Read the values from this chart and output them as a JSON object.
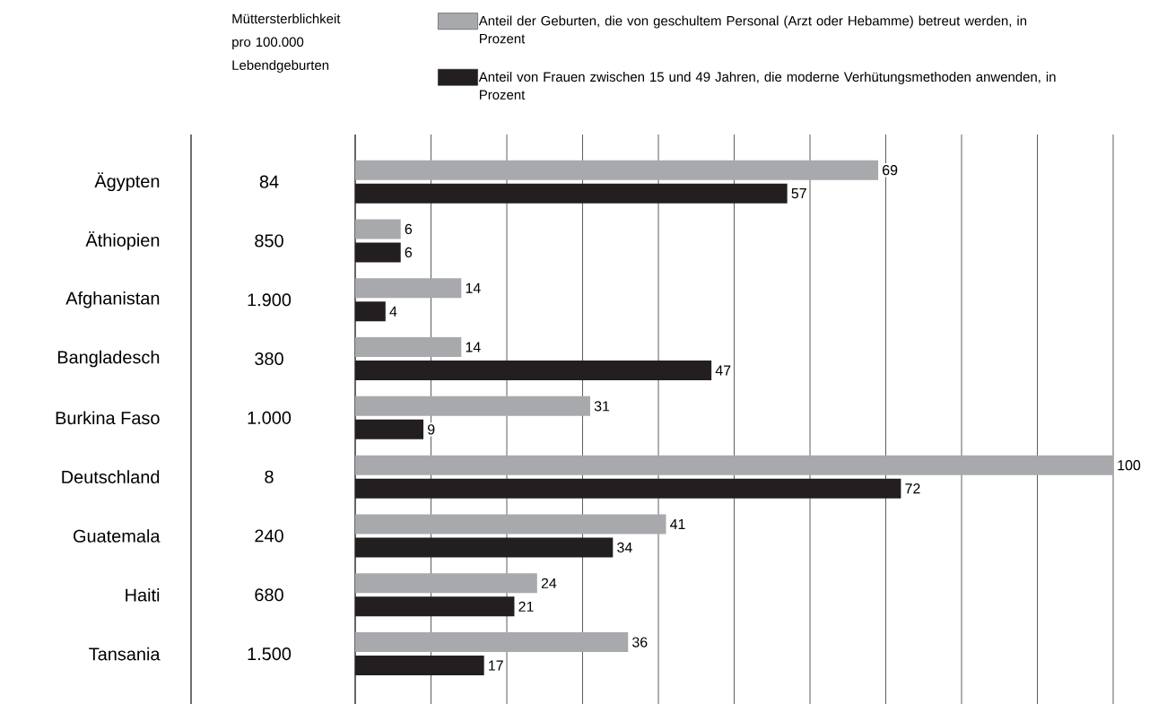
{
  "chart_data": {
    "type": "bar",
    "orientation": "horizontal",
    "categories": [
      "Ägypten",
      "Äthiopien",
      "Afghanistan",
      "Bangladesch",
      "Burkina Faso",
      "Deutschland",
      "Guatemala",
      "Haiti",
      "Tansania"
    ],
    "series": [
      {
        "name": "Anteil der Geburten, die von geschultem Personal (Arzt oder Hebamme) betreut werden, in Prozent",
        "color": "#a7a9ac",
        "values": [
          69,
          6,
          14,
          14,
          31,
          100,
          41,
          24,
          36
        ]
      },
      {
        "name": "Anteil von Frauen zwischen 15 und 49 Jahren, die moderne Verhütungsmethoden anwenden, in Prozent",
        "color": "#231f20",
        "values": [
          57,
          6,
          4,
          47,
          9,
          72,
          34,
          21,
          17
        ]
      }
    ],
    "xlim": [
      0,
      100
    ],
    "xticks": [
      {
        "value": 10,
        "label": null
      },
      {
        "value": 20,
        "label": null
      },
      {
        "value": 30,
        "label": null
      },
      {
        "value": 40,
        "label": null
      },
      {
        "value": 50,
        "label": null
      },
      {
        "value": 60,
        "label": null
      },
      {
        "value": 70,
        "label": null
      },
      {
        "value": 80,
        "label": null
      },
      {
        "value": 90,
        "label": null
      },
      {
        "value": 100,
        "label": null
      }
    ],
    "tick_labels": "y",
    "grid": "x",
    "legend": "top",
    "data_labels": true,
    "annotations": [
      "Müttersterblichkeit pro 100.000 Lebendgeburten",
      "84",
      "850",
      "1.900",
      "380",
      "1.000",
      "8",
      "240",
      "680",
      "1.500"
    ]
  }
}
